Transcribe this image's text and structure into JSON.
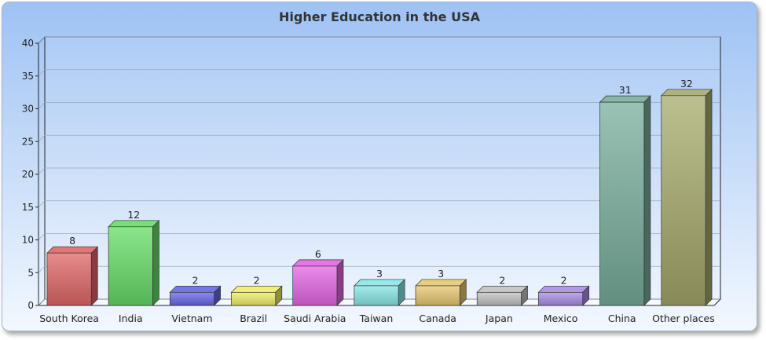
{
  "chart_data": {
    "type": "bar",
    "title": "Higher Education in the USA",
    "xlabel": "",
    "ylabel": "",
    "ylim": [
      0,
      40
    ],
    "yticks": [
      "0",
      "5",
      "10",
      "15",
      "20",
      "25",
      "30",
      "35",
      "40"
    ],
    "grid": true,
    "legend": "none",
    "categories": [
      "South Korea",
      "India",
      "Vietnam",
      "Brazil",
      "Saudi Arabia",
      "Taiwan",
      "Canada",
      "Japan",
      "Mexico",
      "China",
      "Other places"
    ],
    "values": [
      8,
      12,
      2,
      2,
      6,
      3,
      3,
      2,
      2,
      31,
      32
    ],
    "colors": [
      "#e06666",
      "#66dd66",
      "#6666e8",
      "#eeee66",
      "#e466e4",
      "#88e6e6",
      "#e6c870",
      "#c2c2c2",
      "#a88ee4",
      "#78ae9c",
      "#a6aa6a"
    ]
  }
}
